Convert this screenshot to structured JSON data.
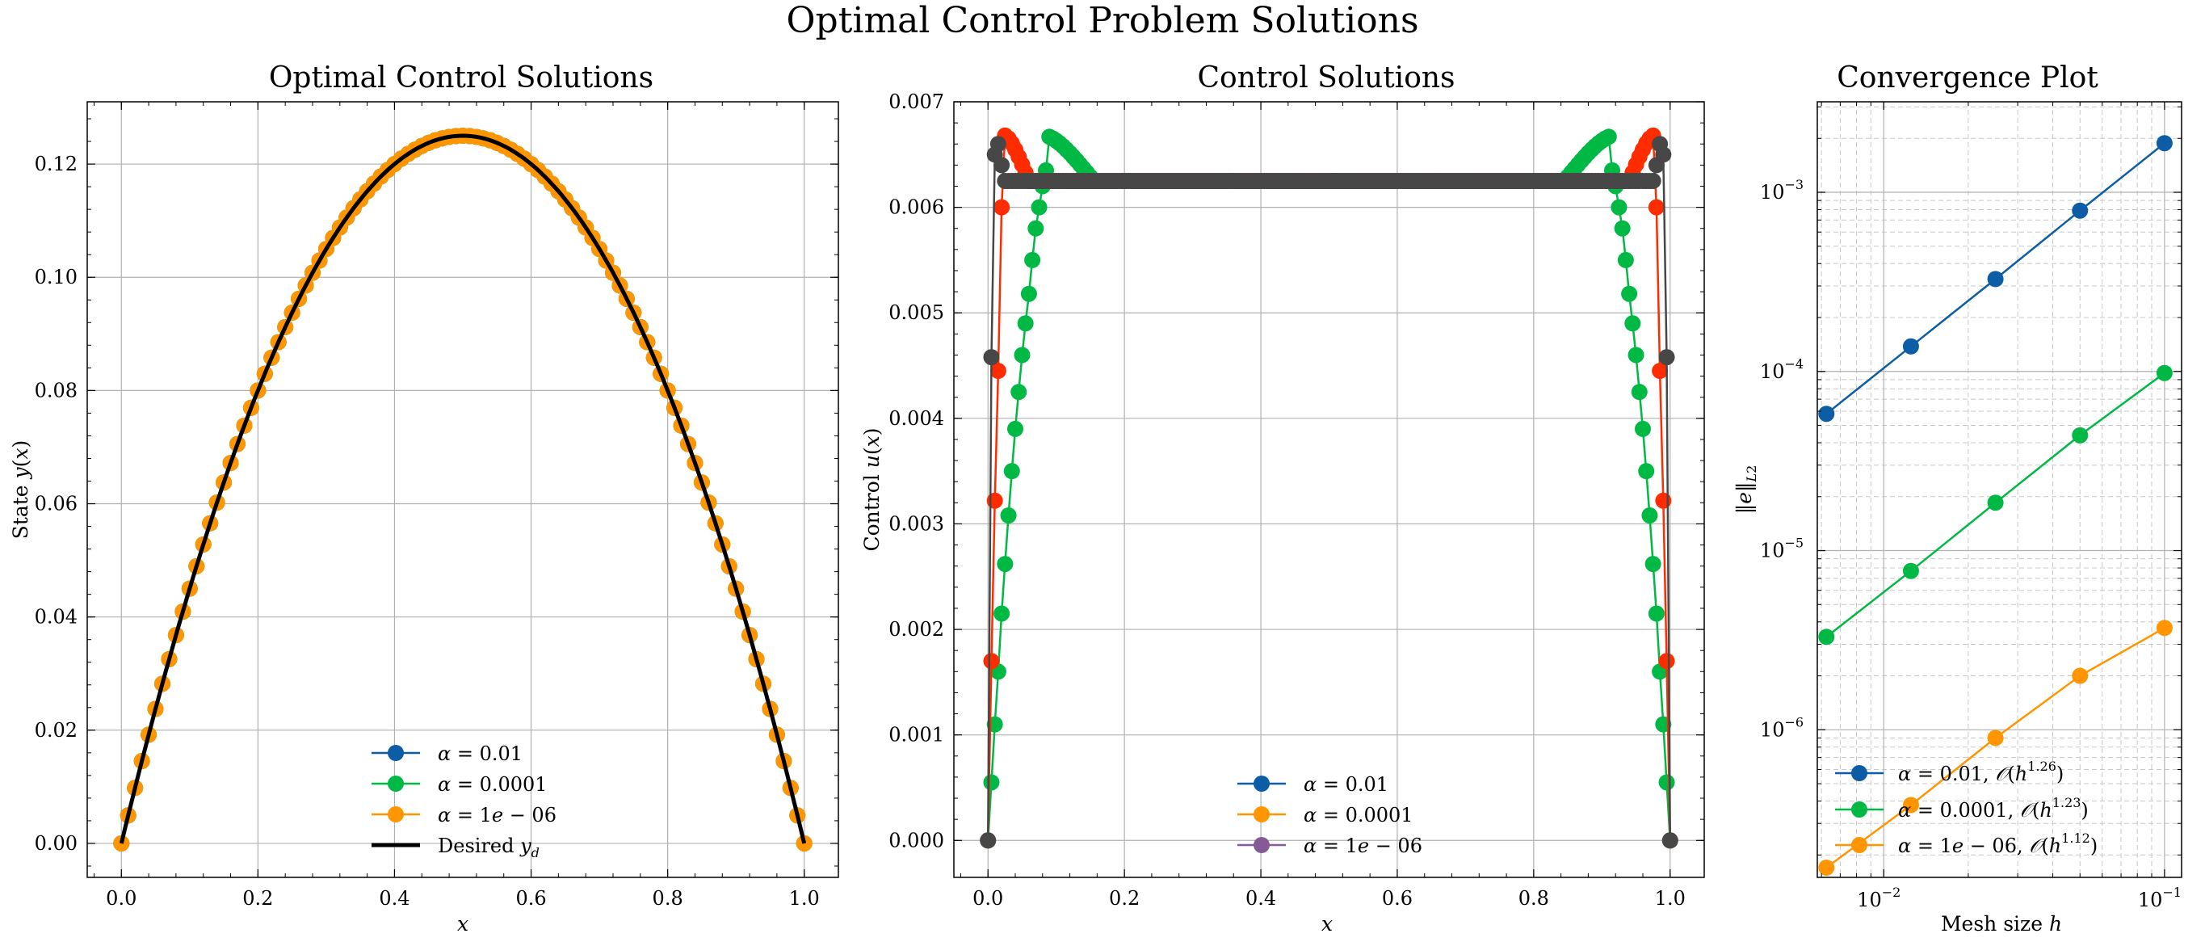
{
  "figure": {
    "title": "Optimal Control Problem Solutions"
  },
  "panels": [
    {
      "title": "Optimal Control Solutions",
      "xlabel": "x",
      "ylabel": "State y(x)",
      "legend": [
        "α = 0.01",
        "α = 0.0001",
        "α = 1e − 06",
        "Desired y_d"
      ]
    },
    {
      "title": "Control Solutions",
      "xlabel": "x",
      "ylabel": "Control u(x)",
      "legend": [
        "α = 0.01",
        "α = 0.0001",
        "α = 1e − 06"
      ]
    },
    {
      "title": "Convergence Plot",
      "xlabel": "Mesh size h",
      "ylabel": "‖e‖_L2",
      "legend": [
        "α = 0.01,  O(h^1.26)",
        "α = 0.0001,  O(h^1.23)",
        "α = 1e − 06,  O(h^1.12)"
      ]
    }
  ],
  "colors": {
    "blue": "#0C5DA5",
    "green": "#00B945",
    "orange": "#FF9500",
    "red": "#FF2C00",
    "purple": "#845B97",
    "gray": "#474747",
    "black": "#000000"
  },
  "chart_data": [
    {
      "type": "line",
      "title": "Optimal Control Solutions",
      "xlabel": "x",
      "ylabel": "State y(x)",
      "xlim": [
        -0.05,
        1.05
      ],
      "ylim": [
        -0.006,
        0.131
      ],
      "xticks": [
        0.0,
        0.2,
        0.4,
        0.6,
        0.8,
        1.0
      ],
      "yticks": [
        0.0,
        0.02,
        0.04,
        0.06,
        0.08,
        0.1,
        0.12
      ],
      "xtick_labels": [
        "0.0",
        "0.2",
        "0.4",
        "0.6",
        "0.8",
        "1.0"
      ],
      "ytick_labels": [
        "0.00",
        "0.02",
        "0.04",
        "0.06",
        "0.08",
        "0.10",
        "0.12"
      ],
      "grid": true,
      "legend_position": "lower center",
      "series": [
        {
          "name": "α = 0.01",
          "color": "#0C5DA5",
          "marker": "o",
          "x_range": [
            0,
            1
          ],
          "n_points": 101,
          "formula": "x(1-x)/2",
          "peak": 0.125
        },
        {
          "name": "α = 0.0001",
          "color": "#00B945",
          "marker": "o",
          "x_range": [
            0,
            1
          ],
          "n_points": 101,
          "formula": "x(1-x)/2",
          "peak": 0.125
        },
        {
          "name": "α = 1e − 06",
          "color": "#FF9500",
          "marker": "o",
          "x_range": [
            0,
            1
          ],
          "n_points": 101,
          "formula": "x(1-x)/2",
          "peak": 0.125
        },
        {
          "name": "Desired y_d",
          "color": "#000000",
          "marker": "none",
          "x_range": [
            0,
            1
          ],
          "formula": "x(1-x)/2",
          "peak": 0.125
        }
      ]
    },
    {
      "type": "line",
      "title": "Control Solutions",
      "xlabel": "x",
      "ylabel": "Control u(x)",
      "xlim": [
        -0.05,
        1.05
      ],
      "ylim": [
        -0.00035,
        0.007
      ],
      "xticks": [
        0.0,
        0.2,
        0.4,
        0.6,
        0.8,
        1.0
      ],
      "yticks": [
        0.0,
        0.001,
        0.002,
        0.003,
        0.004,
        0.005,
        0.006,
        0.007
      ],
      "xtick_labels": [
        "0.0",
        "0.2",
        "0.4",
        "0.6",
        "0.8",
        "1.0"
      ],
      "ytick_labels": [
        "0.000",
        "0.001",
        "0.002",
        "0.003",
        "0.004",
        "0.005",
        "0.006",
        "0.007"
      ],
      "grid": true,
      "legend_position": "lower center",
      "series": [
        {
          "name": "α = 0.0001",
          "color": "#00B945",
          "marker": "o",
          "plateau": 0.00625,
          "overshoot_peak": 0.00668,
          "overshoot_x": [
            0.085,
            0.915
          ],
          "edge_points": [
            [
              0.0,
              0.0
            ],
            [
              0.005,
              0.00055
            ],
            [
              0.01,
              0.0011
            ],
            [
              0.015,
              0.0016
            ],
            [
              0.02,
              0.00215
            ],
            [
              0.025,
              0.00262
            ],
            [
              0.03,
              0.00308
            ],
            [
              0.035,
              0.0035
            ],
            [
              0.04,
              0.0039
            ],
            [
              0.045,
              0.00425
            ],
            [
              0.05,
              0.0046
            ],
            [
              0.055,
              0.0049
            ],
            [
              0.06,
              0.00518
            ],
            [
              0.065,
              0.0055
            ],
            [
              0.07,
              0.0058
            ],
            [
              0.075,
              0.006
            ],
            [
              0.08,
              0.0062
            ],
            [
              0.085,
              0.00635
            ]
          ]
        },
        {
          "name": "",
          "color": "#FF2C00",
          "marker": "o",
          "plateau": 0.00625,
          "overshoot_peak": 0.00668,
          "overshoot_x": [
            0.025,
            0.975
          ],
          "edge_points": [
            [
              0.0,
              0.0
            ],
            [
              0.005,
              0.0017
            ],
            [
              0.01,
              0.00322
            ],
            [
              0.015,
              0.00445
            ],
            [
              0.02,
              0.006
            ],
            [
              0.025,
              0.00668
            ]
          ]
        },
        {
          "name": "",
          "color": "#474747",
          "marker": "o",
          "plateau": 0.00625,
          "edge_points": [
            [
              0.0,
              0.0
            ],
            [
              0.005,
              0.00458
            ],
            [
              0.01,
              0.0065
            ],
            [
              0.015,
              0.0066
            ],
            [
              0.02,
              0.0064
            ]
          ]
        }
      ],
      "legend_entries": [
        {
          "name": "α = 0.01",
          "color": "#0C5DA5"
        },
        {
          "name": "α = 0.0001",
          "color": "#FF9500"
        },
        {
          "name": "α = 1e − 06",
          "color": "#845B97"
        }
      ]
    },
    {
      "type": "line",
      "title": "Convergence Plot",
      "xlabel": "Mesh size h",
      "ylabel": "‖e‖_L2",
      "xscale": "log",
      "yscale": "log",
      "xlim": [
        0.0058,
        0.115
      ],
      "ylim": [
        1.5e-07,
        0.0032
      ],
      "xtick_labels": [
        "10^-2",
        "10^-1"
      ],
      "ytick_labels": [
        "10^-6",
        "10^-5",
        "10^-4",
        "10^-3"
      ],
      "grid": true,
      "legend_position": "lower left",
      "x": [
        0.00625,
        0.0125,
        0.025,
        0.05,
        0.1
      ],
      "series": [
        {
          "name": "α = 0.01,  O(h^1.26)",
          "color": "#0C5DA5",
          "marker": "o",
          "values": [
            5.8e-05,
            0.000138,
            0.000328,
            0.00079,
            0.00188
          ]
        },
        {
          "name": "α = 0.0001,  O(h^1.23)",
          "color": "#00B945",
          "marker": "o",
          "values": [
            3.3e-06,
            7.7e-06,
            1.85e-05,
            4.4e-05,
            9.8e-05
          ]
        },
        {
          "name": "α = 1e − 06,  O(h^1.12)",
          "color": "#FF9500",
          "marker": "o",
          "values": [
            1.7e-07,
            3.8e-07,
            9e-07,
            2e-06,
            3.7e-06
          ]
        }
      ]
    }
  ]
}
